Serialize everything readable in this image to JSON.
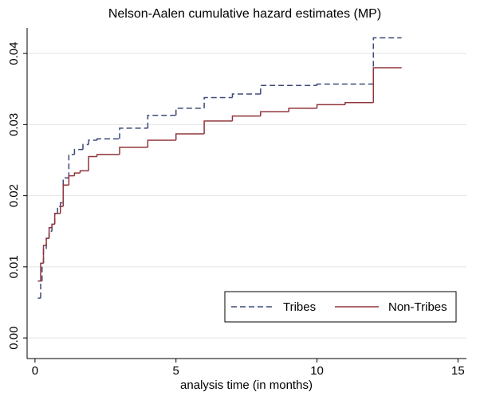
{
  "chart_data": {
    "type": "step",
    "title": "Nelson-Aalen cumulative hazard estimates (MP)",
    "x_label": "analysis time (in months)",
    "xlim": [
      -0.28,
      15.3
    ],
    "ylim": [
      -0.0029,
      0.0436
    ],
    "xticks": [
      0,
      5,
      10,
      15
    ],
    "yticks": [
      {
        "value": 0,
        "label": "0.00"
      },
      {
        "value": 0.01,
        "label": "0.01"
      },
      {
        "value": 0.02,
        "label": "0.02"
      },
      {
        "value": 0.03,
        "label": "0.03"
      },
      {
        "value": 0.04,
        "label": "0.04"
      }
    ],
    "grid": true,
    "legend": "bottom-right",
    "series": [
      {
        "name": "Tribes",
        "color": "#3c4a78",
        "dash": true,
        "x": [
          0.1,
          0.2,
          0.25,
          0.3,
          0.4,
          0.5,
          0.6,
          0.7,
          0.8,
          0.9,
          1.0,
          1.2,
          1.4,
          1.7,
          1.9,
          2.2,
          3.0,
          4.0,
          5.0,
          6.0,
          7.0,
          8.0,
          10.0,
          12.0,
          13.0
        ],
        "values": [
          0.0056,
          0.008,
          0.0105,
          0.0125,
          0.014,
          0.015,
          0.016,
          0.0175,
          0.0185,
          0.019,
          0.0225,
          0.0258,
          0.0265,
          0.0272,
          0.0278,
          0.028,
          0.0295,
          0.0313,
          0.0323,
          0.0338,
          0.0343,
          0.0355,
          0.0357,
          0.0422,
          0.0422
        ]
      },
      {
        "name": "Non-Tribes",
        "color": "#90353b",
        "dash": false,
        "x": [
          0.1,
          0.2,
          0.3,
          0.4,
          0.5,
          0.6,
          0.7,
          0.9,
          1.0,
          1.2,
          1.4,
          1.6,
          1.9,
          2.2,
          3.0,
          4.0,
          5.0,
          6.0,
          7.0,
          8.0,
          9.0,
          10.0,
          11.0,
          12.0,
          13.0
        ],
        "values": [
          0.008,
          0.0105,
          0.013,
          0.014,
          0.0155,
          0.016,
          0.0175,
          0.0185,
          0.0215,
          0.0228,
          0.0232,
          0.0235,
          0.0255,
          0.0258,
          0.0268,
          0.0278,
          0.0287,
          0.0305,
          0.0312,
          0.0318,
          0.0323,
          0.0328,
          0.0331,
          0.038,
          0.038
        ]
      }
    ]
  }
}
